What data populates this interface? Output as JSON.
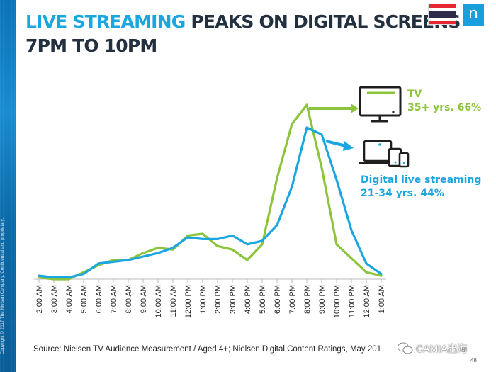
{
  "slide": {
    "title_highlight": "LIVE STREAMING",
    "title_rest": " PEAKS ON DIGITAL SCREENS",
    "title_line2": "7PM TO 10PM",
    "copyright": "Copyright © 2017 The Nielsen Company. Confidential and proprietary.",
    "source": "Source: Nielsen TV Audience Measurement  / Aged 4+; Nielsen Digital Content Ratings, May 201",
    "page_number": "48",
    "watermark": "CAMIA出海",
    "logo_letter": "n",
    "flag_colors": [
      "#e52833",
      "#ffffff",
      "#2d2a4a",
      "#ffffff",
      "#e52833"
    ]
  },
  "chart_data": {
    "type": "line",
    "categories": [
      "2:00 AM",
      "3:00 AM",
      "4:00 AM",
      "5:00 AM",
      "6:00 AM",
      "7:00 AM",
      "8:00 AM",
      "9:00 AM",
      "10:00 AM",
      "11:00 AM",
      "12:00 PM",
      "1:00 PM",
      "2:00 PM",
      "3:00 PM",
      "4:00 PM",
      "5:00 PM",
      "6:00 PM",
      "7:00 PM",
      "8:00 PM",
      "9:00 PM",
      "10:00 PM",
      "11:00 PM",
      "12:00 AM",
      "1:00 AM"
    ],
    "series": [
      {
        "name": "TV",
        "color": "#8cc43c",
        "values": [
          1,
          0,
          0,
          4,
          8,
          11,
          11,
          15,
          18,
          17,
          25,
          26,
          19,
          17,
          11,
          20,
          58,
          89,
          100,
          64,
          20,
          12,
          4,
          2
        ],
        "annotation_line1": "TV",
        "annotation_line2": "35+ yrs.  66%",
        "icon": "tv-icon"
      },
      {
        "name": "Digital live streaming",
        "color": "#1ba6e0",
        "values": [
          2,
          1,
          1,
          3,
          9,
          10,
          11,
          13,
          15,
          18,
          24,
          23,
          23,
          25,
          20,
          22,
          31,
          53,
          87,
          83,
          57,
          28,
          9,
          3
        ],
        "annotation_line1": "Digital live streaming",
        "annotation_line2": "21-34 yrs. 44%",
        "icon": "devices-icon"
      }
    ],
    "ylim": [
      0,
      100
    ],
    "grid": false,
    "legend": "none"
  }
}
